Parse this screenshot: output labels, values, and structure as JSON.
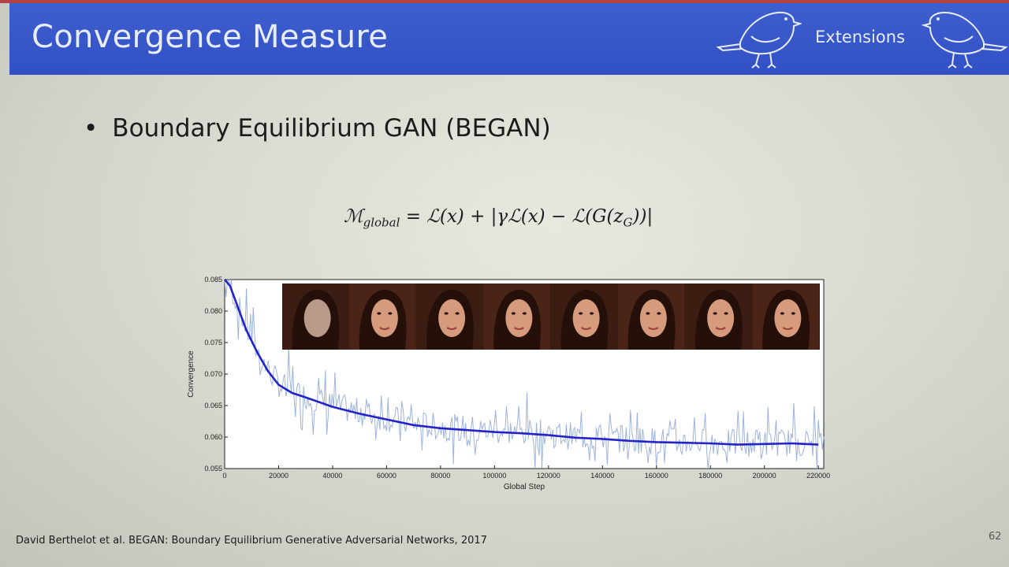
{
  "slide": {
    "title": "Convergence Measure",
    "section": "Extensions",
    "bullet": "Boundary Equilibrium GAN (BEGAN)",
    "formula": {
      "lhs": "ℳ",
      "lhs_sub": "global",
      "rhs": " = ℒ(x) + |γℒ(x) − ℒ(G(z",
      "rhs_sub": "G",
      "rhs_end": "))|"
    },
    "footnote": "David Berthelot et al. BEGAN: Boundary Equilibrium Generative Adversarial Networks, 2017",
    "page_number": "62",
    "colors": {
      "header": "#3353c6",
      "curve": "#2323c8",
      "raw": "#9db3de"
    }
  },
  "chart_data": {
    "type": "line",
    "xlabel": "Global Step",
    "ylabel": "Convergence",
    "xlim": [
      0,
      222000
    ],
    "ylim": [
      0.055,
      0.085
    ],
    "xticks": [
      0,
      20000,
      40000,
      60000,
      80000,
      100000,
      120000,
      140000,
      160000,
      180000,
      200000,
      220000
    ],
    "xtick_labels": [
      "0",
      "20000",
      "40000",
      "60000",
      "80000",
      "100000",
      "120000",
      "140000",
      "160000",
      "180000",
      "200000",
      "220000"
    ],
    "yticks": [
      0.055,
      0.06,
      0.065,
      0.07,
      0.075,
      0.08,
      0.085
    ],
    "ytick_labels": [
      "0.055",
      "0.060",
      "0.065",
      "0.070",
      "0.075",
      "0.080",
      "0.085"
    ],
    "grid": false,
    "inset_face_samples": 8,
    "series": [
      {
        "role": "smoothed",
        "x": [
          0,
          2000,
          5000,
          8000,
          12000,
          16000,
          20000,
          25000,
          30000,
          40000,
          50000,
          60000,
          70000,
          80000,
          90000,
          100000,
          110000,
          120000,
          130000,
          140000,
          150000,
          160000,
          170000,
          180000,
          190000,
          200000,
          210000,
          220000
        ],
        "y": [
          0.085,
          0.084,
          0.0805,
          0.077,
          0.0735,
          0.0705,
          0.0683,
          0.067,
          0.0663,
          0.0648,
          0.0637,
          0.0628,
          0.0619,
          0.0614,
          0.0611,
          0.0608,
          0.0606,
          0.0603,
          0.0599,
          0.0597,
          0.0594,
          0.0592,
          0.0591,
          0.059,
          0.0588,
          0.0589,
          0.059,
          0.0588
        ]
      }
    ]
  }
}
